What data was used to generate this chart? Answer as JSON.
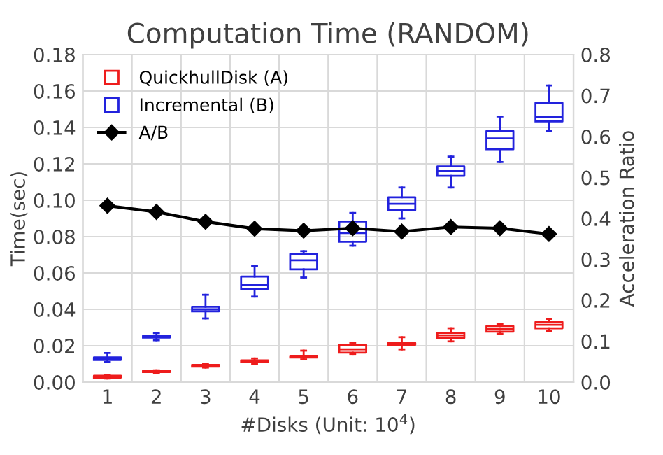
{
  "chart_data": {
    "type": "box",
    "title": "Computation Time (RANDOM)",
    "xlabel": "#Disks (Unit: 10$^{4}$)",
    "ylabel": "Time(sec)",
    "y2label": "Acceleration Ratio",
    "categories": [
      "1",
      "2",
      "3",
      "4",
      "5",
      "6",
      "7",
      "8",
      "9",
      "10"
    ],
    "series": [
      {
        "name": "QuickhullDisk (A)",
        "color": "#ee1c1c",
        "boxes": [
          {
            "low": 0.002,
            "q1": 0.0025,
            "median": 0.003,
            "q3": 0.0035,
            "high": 0.004
          },
          {
            "low": 0.005,
            "q1": 0.0055,
            "median": 0.006,
            "q3": 0.0063,
            "high": 0.0065
          },
          {
            "low": 0.008,
            "q1": 0.0085,
            "median": 0.009,
            "q3": 0.0095,
            "high": 0.01
          },
          {
            "low": 0.01,
            "q1": 0.011,
            "median": 0.0115,
            "q3": 0.012,
            "high": 0.013
          },
          {
            "low": 0.0125,
            "q1": 0.0135,
            "median": 0.014,
            "q3": 0.0145,
            "high": 0.0173
          },
          {
            "low": 0.0155,
            "q1": 0.0162,
            "median": 0.018,
            "q3": 0.0205,
            "high": 0.0217
          },
          {
            "low": 0.018,
            "q1": 0.0205,
            "median": 0.021,
            "q3": 0.0215,
            "high": 0.0247
          },
          {
            "low": 0.0224,
            "q1": 0.0242,
            "median": 0.0257,
            "q3": 0.0271,
            "high": 0.0296
          },
          {
            "low": 0.0266,
            "q1": 0.0277,
            "median": 0.0293,
            "q3": 0.0308,
            "high": 0.0318
          },
          {
            "low": 0.0279,
            "q1": 0.0296,
            "median": 0.0315,
            "q3": 0.033,
            "high": 0.0348
          }
        ]
      },
      {
        "name": "Incremental (B)",
        "color": "#2222dd",
        "boxes": [
          {
            "low": 0.011,
            "q1": 0.0122,
            "median": 0.0128,
            "q3": 0.0136,
            "high": 0.016
          },
          {
            "low": 0.023,
            "q1": 0.0245,
            "median": 0.025,
            "q3": 0.0255,
            "high": 0.027
          },
          {
            "low": 0.035,
            "q1": 0.0389,
            "median": 0.04,
            "q3": 0.0414,
            "high": 0.048
          },
          {
            "low": 0.047,
            "q1": 0.0513,
            "median": 0.0533,
            "q3": 0.058,
            "high": 0.064
          },
          {
            "low": 0.0575,
            "q1": 0.062,
            "median": 0.067,
            "q3": 0.0705,
            "high": 0.072
          },
          {
            "low": 0.075,
            "q1": 0.0772,
            "median": 0.082,
            "q3": 0.0883,
            "high": 0.093
          },
          {
            "low": 0.09,
            "q1": 0.0945,
            "median": 0.098,
            "q3": 0.1016,
            "high": 0.107
          },
          {
            "low": 0.107,
            "q1": 0.1134,
            "median": 0.116,
            "q3": 0.1186,
            "high": 0.124
          },
          {
            "low": 0.121,
            "q1": 0.128,
            "median": 0.134,
            "q3": 0.138,
            "high": 0.146
          },
          {
            "low": 0.138,
            "q1": 0.1433,
            "median": 0.1457,
            "q3": 0.1536,
            "high": 0.163
          }
        ]
      },
      {
        "name": "A/B",
        "type": "line",
        "axis": "y2",
        "color": "#000000",
        "marker": "diamond",
        "values": [
          0.431,
          0.416,
          0.392,
          0.375,
          0.37,
          0.376,
          0.368,
          0.379,
          0.376,
          0.362
        ]
      }
    ],
    "ylim": [
      0,
      0.18
    ],
    "yticks": [
      {
        "value": 0,
        "label": "0.00"
      },
      {
        "value": 0.02,
        "label": "0.02"
      },
      {
        "value": 0.04,
        "label": "0.04"
      },
      {
        "value": 0.06,
        "label": "0.06"
      },
      {
        "value": 0.08,
        "label": "0.08"
      },
      {
        "value": 0.1,
        "label": "0.10"
      },
      {
        "value": 0.12,
        "label": "0.12"
      },
      {
        "value": 0.14,
        "label": "0.14"
      },
      {
        "value": 0.16,
        "label": "0.16"
      },
      {
        "value": 0.18,
        "label": "0.18"
      }
    ],
    "y2lim": [
      0,
      0.8
    ],
    "y2ticks": [
      {
        "value": 0,
        "label": "0.0"
      },
      0.1,
      0.2,
      0.3,
      0.4,
      0.5,
      0.6,
      0.7,
      0.8
    ],
    "grid": true,
    "legend": "top left"
  }
}
